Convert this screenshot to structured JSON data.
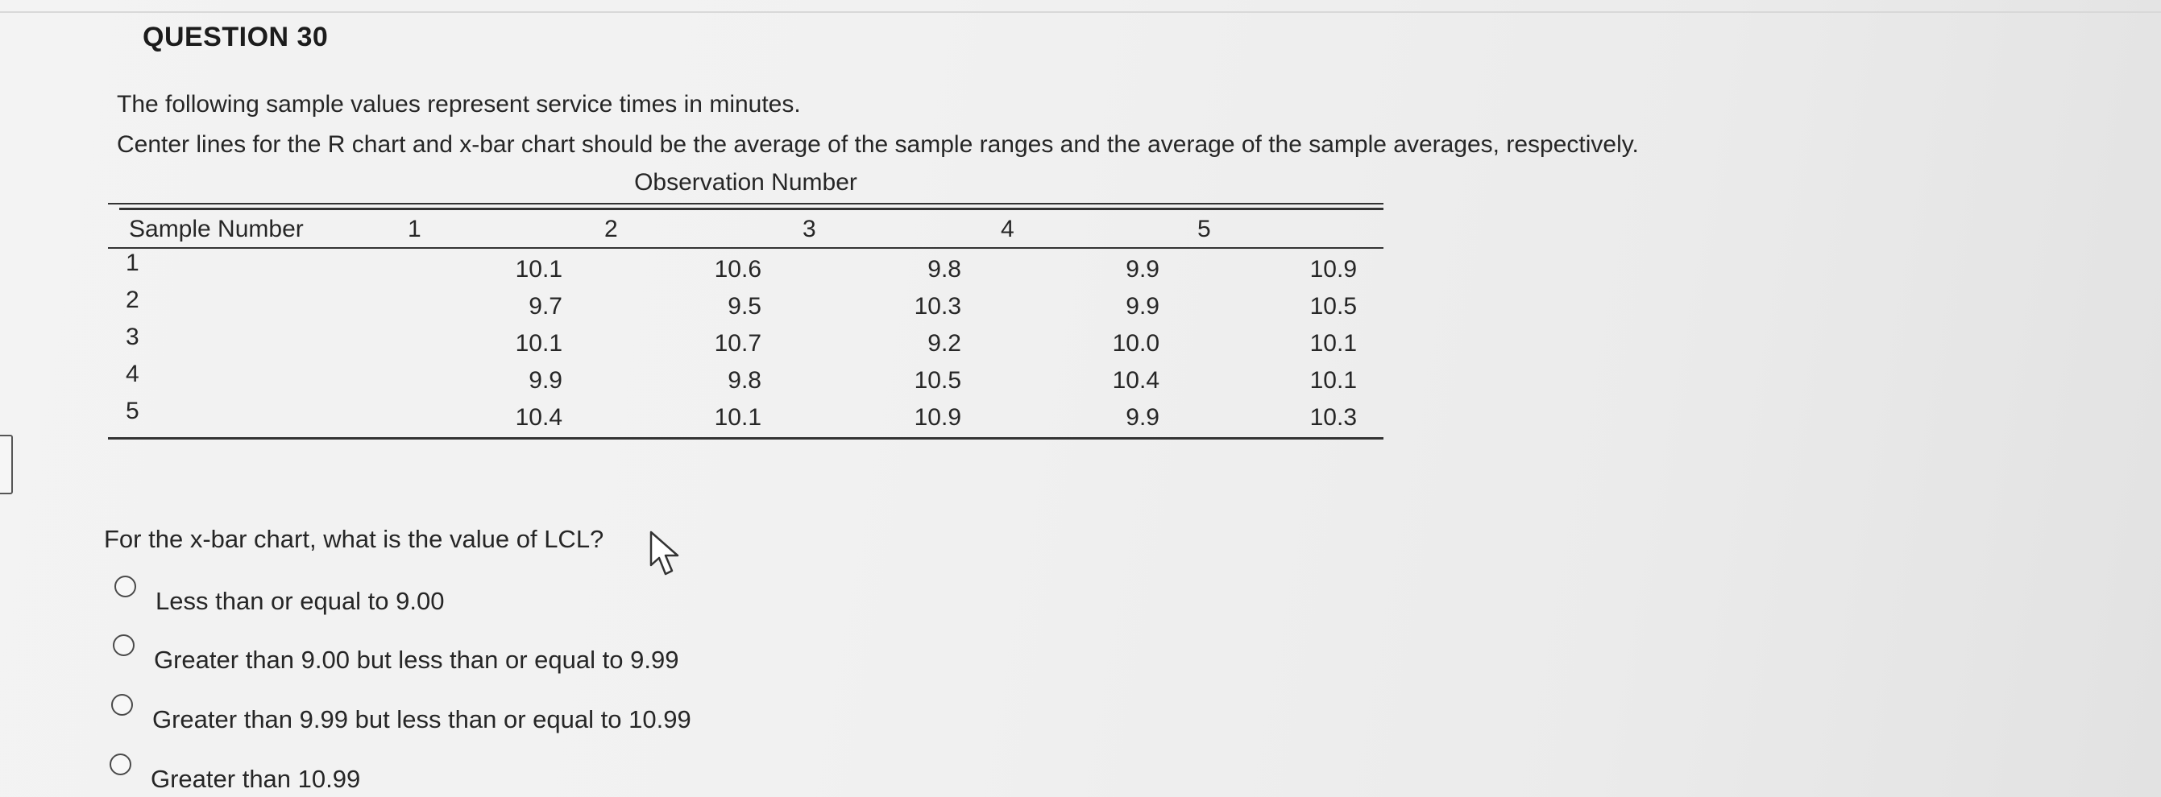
{
  "question": {
    "title": "QUESTION 30",
    "intro_line1": "The following sample values represent service times in minutes.",
    "intro_line2": "Center lines for the R chart and x-bar chart should be the average of the sample ranges and the average of the sample averages, respectively.",
    "prompt": "For the x-bar chart, what is the value of LCL?"
  },
  "table": {
    "group_header": "Observation Number",
    "row_header": "Sample Number",
    "columns": [
      "1",
      "2",
      "3",
      "4",
      "5"
    ],
    "rows": [
      {
        "sample": "1",
        "values": [
          "10.1",
          "10.6",
          "9.8",
          "9.9",
          "10.9"
        ]
      },
      {
        "sample": "2",
        "values": [
          "9.7",
          "9.5",
          "10.3",
          "9.9",
          "10.5"
        ]
      },
      {
        "sample": "3",
        "values": [
          "10.1",
          "10.7",
          "9.2",
          "10.0",
          "10.1"
        ]
      },
      {
        "sample": "4",
        "values": [
          "9.9",
          "9.8",
          "10.5",
          "10.4",
          "10.1"
        ]
      },
      {
        "sample": "5",
        "values": [
          "10.4",
          "10.1",
          "10.9",
          "9.9",
          "10.3"
        ]
      }
    ]
  },
  "options": [
    {
      "label": "Less than or equal to 9.00",
      "selected": false
    },
    {
      "label": "Greater than 9.00 but less than or equal to 9.99",
      "selected": false
    },
    {
      "label": "Greater than 9.99 but less than or equal to 10.99",
      "selected": false
    },
    {
      "label": "Greater than 10.99",
      "selected": false
    }
  ],
  "icons": {
    "cursor": "mouse-pointer-icon",
    "radio": "radio-button-icon"
  },
  "colors": {
    "text": "#262626",
    "rule": "#333333",
    "background": "#f1f1f1"
  }
}
